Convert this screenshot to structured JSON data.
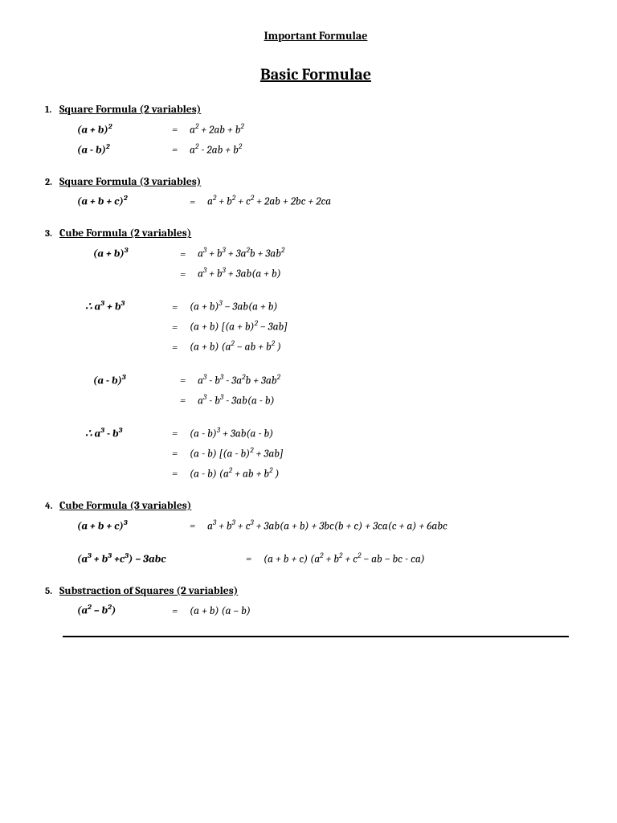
{
  "doc_title": "Important Formulae",
  "section_title": "Basic Formulae",
  "items": [
    {
      "num": "1.",
      "title": "Square Formula (2 variables)",
      "rows": [
        {
          "lhs": "(a + b)²",
          "eq": "=",
          "rhs": "a² + 2ab + b²",
          "cls": "lhs"
        },
        {
          "lhs": "(a - b)²",
          "eq": "=",
          "rhs": "a² -  2ab + b²",
          "cls": "lhs"
        }
      ]
    },
    {
      "num": "2.",
      "title": "Square Formula (3 variables)",
      "rows": [
        {
          "lhs": "(a + b + c)²",
          "eq": "=",
          "rhs": "a² + b² + c² + 2ab + 2bc + 2ca",
          "cls": "lhs2"
        }
      ]
    },
    {
      "num": "3.",
      "title": "Cube Formula (2 variables)",
      "rows": [
        {
          "lhs": "(a + b)³",
          "eq": "=",
          "rhs": "a³ + b³ + 3a²b + 3ab²",
          "cls": "lhs4"
        },
        {
          "lhs": "",
          "eq": "=",
          "rhs": "a³ + b³ + 3ab(a + b)",
          "cls": "lhs4"
        },
        {
          "gap": true
        },
        {
          "lhs": "∴ a³ + b³",
          "eq": "=",
          "rhs": "(a + b)³ – 3ab(a + b)",
          "cls": "lhs5"
        },
        {
          "lhs": "",
          "eq": "=",
          "rhs": "(a + b) [(a + b)² – 3ab]",
          "cls": "lhs5"
        },
        {
          "lhs": "",
          "eq": "=",
          "rhs": "(a + b) (a² – ab + b² )",
          "cls": "lhs5"
        },
        {
          "gap": true
        },
        {
          "lhs": "(a - b)³",
          "eq": "=",
          "rhs": "a³ - b³ - 3a²b + 3ab²",
          "cls": "lhs4"
        },
        {
          "lhs": "",
          "eq": "=",
          "rhs": "a³ - b³ - 3ab(a - b)",
          "cls": "lhs4"
        },
        {
          "gap": true
        },
        {
          "lhs": "∴ a³ - b³",
          "eq": "=",
          "rhs": "(a - b)³ + 3ab(a - b)",
          "cls": "lhs5"
        },
        {
          "lhs": "",
          "eq": "=",
          "rhs": "(a - b) [(a - b)² + 3ab]",
          "cls": "lhs5"
        },
        {
          "lhs": "",
          "eq": "=",
          "rhs": "(a - b) (a² + ab + b² )",
          "cls": "lhs5"
        }
      ]
    },
    {
      "num": "4.",
      "title": "Cube Formula (3 variables)",
      "rows": [
        {
          "lhs": "(a + b + c)³",
          "eq": "=",
          "rhs": "a³ + b³ + c³ + 3ab(a + b) + 3bc(b + c) + 3ca(c + a) + 6abc",
          "cls": "lhs2"
        },
        {
          "gap": true
        },
        {
          "lhs": "(a³ + b³ +c³) – 3abc",
          "eq": "=",
          "rhs": "(a + b + c) (a² + b² + c² – ab – bc - ca)",
          "cls": "lhs3"
        }
      ]
    },
    {
      "num": "5.",
      "title": "Substraction of Squares (2 variables)",
      "rows": [
        {
          "lhs": "(a² – b²)",
          "eq": "=",
          "rhs": "(a + b) (a – b)",
          "cls": "lhs"
        }
      ]
    }
  ]
}
